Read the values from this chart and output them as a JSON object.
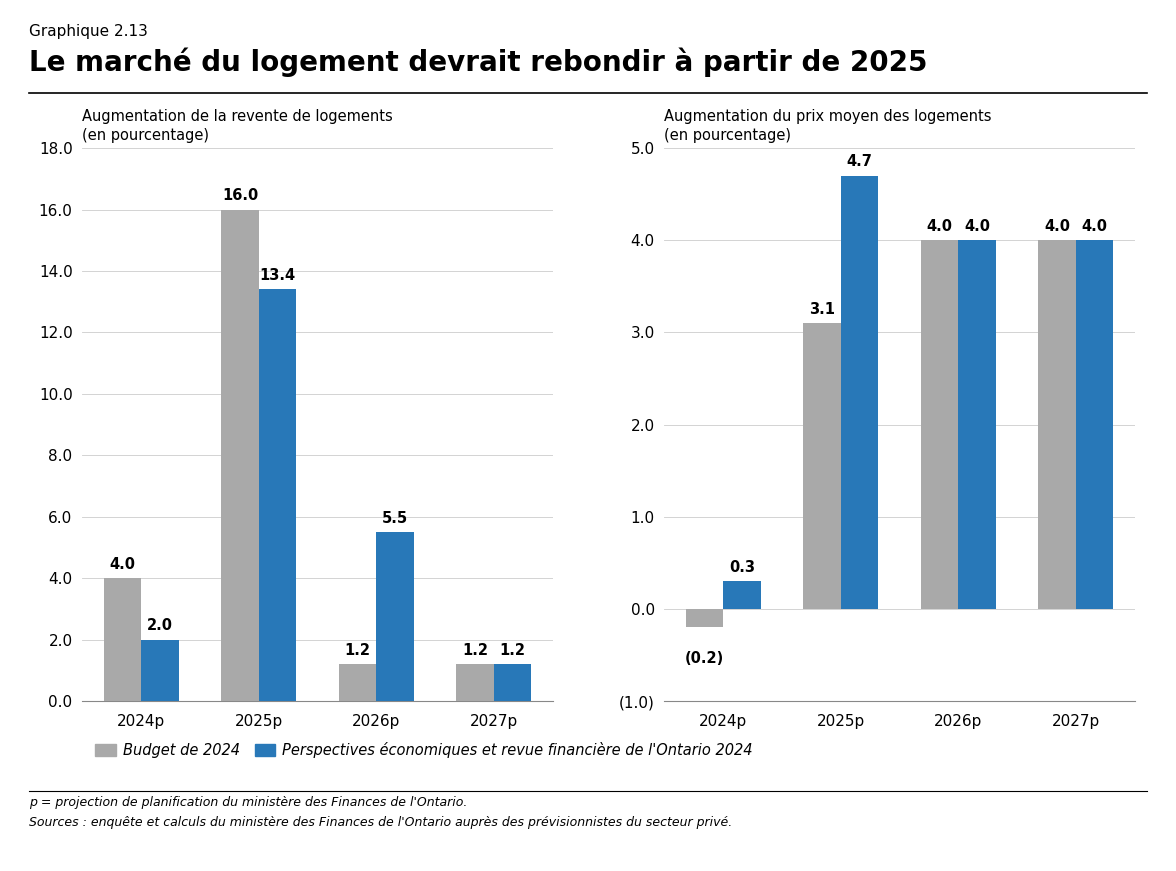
{
  "title_small": "Graphique 2.13",
  "title_large": "Le marché du logement devrait rebondir à partir de 2025",
  "left_chart": {
    "label1": "Augmentation de la revente de logements",
    "label2": "(en pourcentage)",
    "categories": [
      "2024p",
      "2025p",
      "2026p",
      "2027p"
    ],
    "budget_values": [
      4.0,
      16.0,
      1.2,
      1.2
    ],
    "perspectives_values": [
      2.0,
      13.4,
      5.5,
      1.2
    ],
    "ylim": [
      0.0,
      18.0
    ],
    "yticks": [
      0.0,
      2.0,
      4.0,
      6.0,
      8.0,
      10.0,
      12.0,
      14.0,
      16.0,
      18.0
    ]
  },
  "right_chart": {
    "label1": "Augmentation du prix moyen des logements",
    "label2": "(en pourcentage)",
    "categories": [
      "2024p",
      "2025p",
      "2026p",
      "2027p"
    ],
    "budget_values": [
      -0.2,
      3.1,
      4.0,
      4.0
    ],
    "perspectives_values": [
      0.3,
      4.7,
      4.0,
      4.0
    ],
    "ylim": [
      -1.0,
      5.0
    ],
    "yticks": [
      -1.0,
      0.0,
      1.0,
      2.0,
      3.0,
      4.0,
      5.0
    ]
  },
  "bar_color_budget": "#a9a9a9",
  "bar_color_perspectives": "#2878b8",
  "legend_label_budget": "Budget de 2024",
  "legend_label_perspectives": "Perspectives économiques et revue financière de l'Ontario 2024",
  "footnote1": "p = projection de planification du ministère des Finances de l'Ontario.",
  "footnote2": "Sources : enquête et calculs du ministère des Finances de l'Ontario auprès des prévisionnistes du secteur privé.",
  "background_color": "#ffffff"
}
